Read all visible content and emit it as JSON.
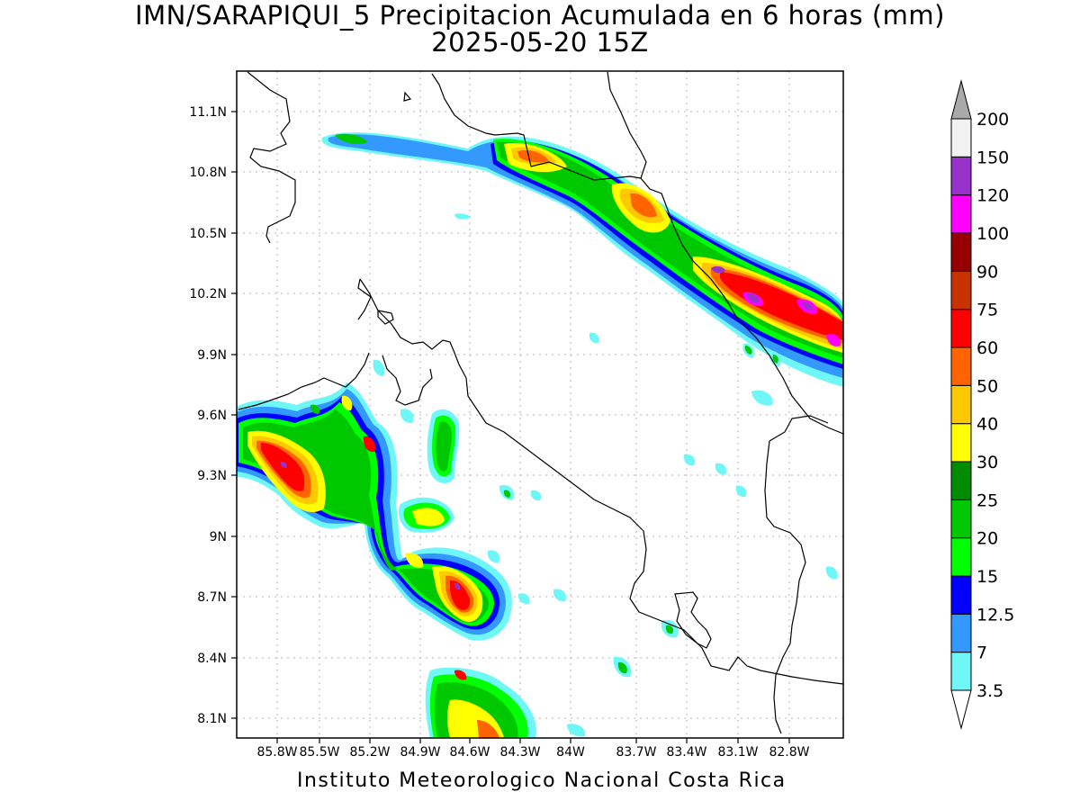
{
  "title_line1": "IMN/SARAPIQUI_5 Precipitacion Acumulada en 6 horas (mm)",
  "title_line2": "2025-05-20 15Z",
  "footer": "Instituto Meteorologico Nacional Costa Rica",
  "map": {
    "lon_range": [
      -86.0,
      -83.0
    ],
    "lat_range": [
      8.0,
      11.25
    ],
    "lat_ticks": [
      "11.1N",
      "10.8N",
      "10.5N",
      "10.2N",
      "9.9N",
      "9.6N",
      "9.3N",
      "9N",
      "8.7N",
      "8.4N",
      "8.1N"
    ],
    "lon_ticks": [
      "85.8W",
      "85.5W",
      "85.2W",
      "84.9W",
      "84.6W",
      "84.3W",
      "84W",
      "83.7W",
      "83.4W",
      "83.1W",
      "82.8W"
    ],
    "grid": true
  },
  "colorbar": {
    "unit": "mm",
    "levels": [
      "3.5",
      "7",
      "12.5",
      "15",
      "20",
      "25",
      "30",
      "40",
      "50",
      "60",
      "75",
      "90",
      "100",
      "120",
      "150",
      "200"
    ],
    "colors": [
      "#6ff6f6",
      "#3399ff",
      "#0000ff",
      "#00ff00",
      "#00c800",
      "#008c00",
      "#ffff00",
      "#ffc800",
      "#ff6400",
      "#ff0000",
      "#c83200",
      "#960000",
      "#ff00ff",
      "#9932cc",
      "#f2f2f2",
      "#a9a9a9"
    ]
  }
}
